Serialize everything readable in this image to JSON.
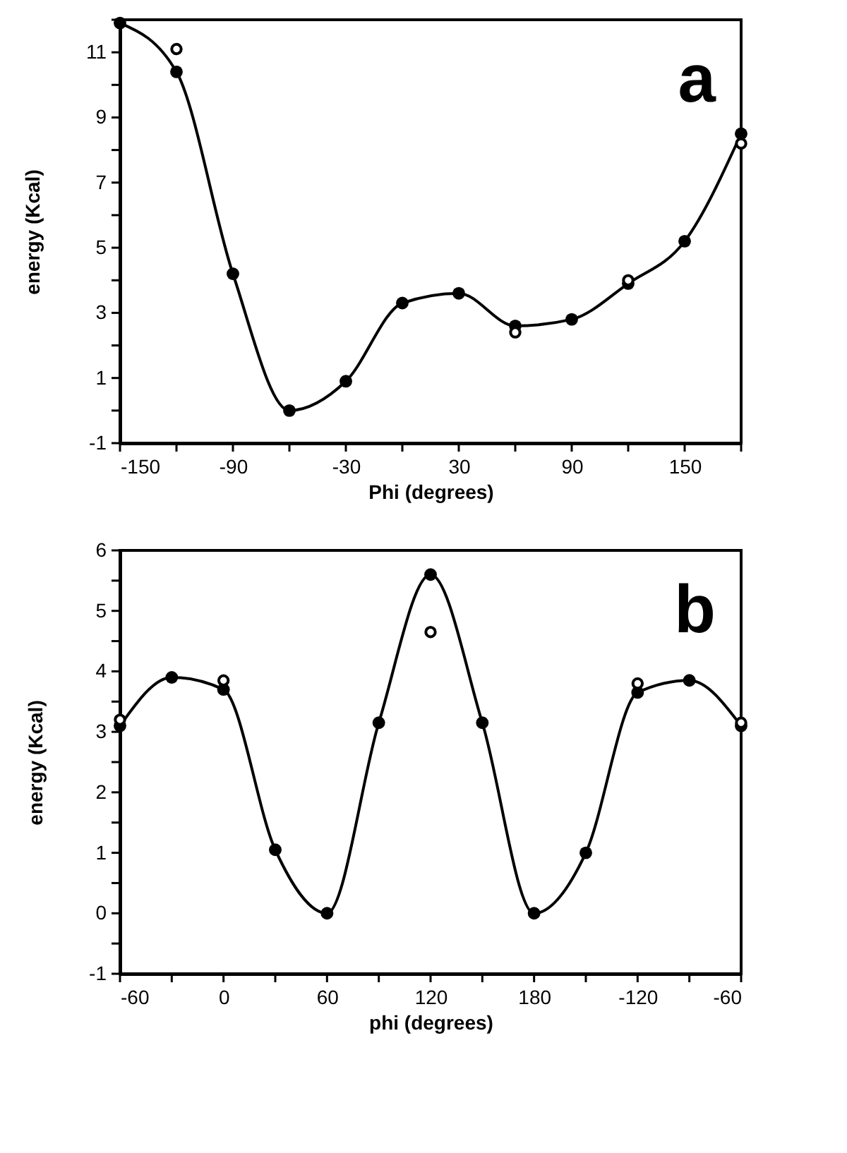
{
  "chart_data": [
    {
      "type": "line",
      "xlabel": "Phi  (degrees)",
      "ylabel": "energy  (Kcal)",
      "annotations": [
        "a"
      ],
      "xlim": [
        -150,
        180
      ],
      "xticks": [
        -150,
        {
          "value": -120,
          "label": null
        },
        -90,
        {
          "value": -60,
          "label": null
        },
        -30,
        {
          "value": 0,
          "label": null
        },
        30,
        {
          "value": 60,
          "label": null
        },
        90,
        {
          "value": 120,
          "label": null
        },
        150,
        {
          "value": 180,
          "label": null
        }
      ],
      "ylim": [
        -1,
        12
      ],
      "yticks": [
        -1,
        {
          "value": 0,
          "label": null
        },
        1,
        {
          "value": 2,
          "label": null
        },
        3,
        {
          "value": 4,
          "label": null
        },
        5,
        {
          "value": 6,
          "label": null
        },
        7,
        {
          "value": 8,
          "label": null
        },
        9,
        {
          "value": 10,
          "label": null
        },
        11,
        {
          "value": 12,
          "label": null
        }
      ],
      "grid": false,
      "marker": "circle",
      "line_style": "solid",
      "series": [
        {
          "color": "#000000",
          "x": [
            -150,
            -120,
            -90,
            -60,
            -30,
            0,
            30,
            60,
            90,
            120,
            150,
            180
          ],
          "values": [
            11.9,
            10.4,
            4.2,
            0,
            0.9,
            3.3,
            3.6,
            2.6,
            2.8,
            3.9,
            5.2,
            8.5
          ]
        },
        {
          "type": "scatter",
          "color": "#000000",
          "x": [
            -120,
            60,
            120,
            180
          ],
          "values": [
            11.1,
            2.4,
            4.0,
            8.2
          ]
        }
      ]
    },
    {
      "type": "line",
      "xlabel": "phi  (degrees)",
      "ylabel": "energy  (Kcal)",
      "annotations": [
        "b"
      ],
      "categories": [
        "-60",
        null,
        "0",
        null,
        "60",
        null,
        "120",
        null,
        "180",
        null,
        "-120",
        null,
        "-60"
      ],
      "ylim": [
        -1,
        6
      ],
      "yticks": [
        -1,
        {
          "value": -0.5,
          "label": null
        },
        0,
        {
          "value": 0.5,
          "label": null
        },
        1,
        {
          "value": 1.5,
          "label": null
        },
        2,
        {
          "value": 2.5,
          "label": null
        },
        3,
        {
          "value": 3.5,
          "label": null
        },
        4,
        {
          "value": 4.5,
          "label": null
        },
        5,
        {
          "value": 5.5,
          "label": null
        },
        6
      ],
      "grid": false,
      "marker": "circle",
      "line_style": "solid",
      "series": [
        {
          "color": "#000000",
          "values": [
            3.1,
            3.9,
            3.7,
            1.05,
            0,
            3.15,
            5.6,
            3.15,
            0,
            1.0,
            3.65,
            3.85,
            3.1
          ]
        },
        {
          "type": "scatter",
          "color": "#000000",
          "values": [
            3.2,
            null,
            3.85,
            null,
            null,
            null,
            4.65,
            null,
            null,
            null,
            3.8,
            null,
            3.15
          ]
        }
      ]
    }
  ]
}
